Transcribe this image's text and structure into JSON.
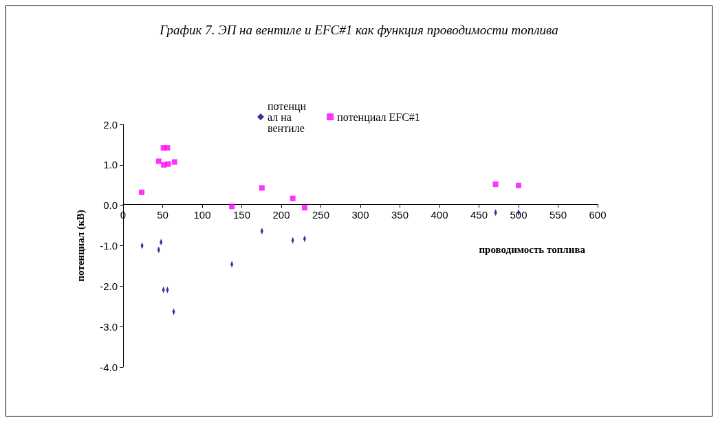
{
  "chart_data": {
    "type": "scatter",
    "title": "График 7. ЭП на вентиле и EFC#1 как функция проводимости топлива",
    "xlabel": "проводимость топлива",
    "ylabel": "потенциал (кВ)",
    "xlim": [
      0,
      600
    ],
    "xticks": [
      0,
      50,
      100,
      150,
      200,
      250,
      300,
      350,
      400,
      450,
      500,
      550,
      600
    ],
    "ylim": [
      -4,
      2
    ],
    "yticks": [
      {
        "value": -4,
        "label": "-4.0"
      },
      {
        "value": -3,
        "label": "-3.0"
      },
      {
        "value": -2,
        "label": "-2.0"
      },
      {
        "value": -1,
        "label": "-1.0"
      },
      {
        "value": 0,
        "label": "0.0"
      },
      {
        "value": 1,
        "label": "1.0"
      },
      {
        "value": 2,
        "label": "2.0"
      }
    ],
    "grid": false,
    "legend": "top",
    "series": [
      {
        "name": "потенциал на вентиле",
        "color": "#000080",
        "marker": "diamond",
        "x": [
          24,
          45,
          48,
          51,
          56,
          64,
          137.5,
          175.5,
          214.5,
          229.5,
          471,
          500
        ],
        "values": [
          -1.0,
          -1.1,
          -0.91,
          -2.09,
          -2.09,
          -2.63,
          -1.46,
          -0.64,
          -0.87,
          -0.83,
          -0.18,
          -0.18
        ]
      },
      {
        "name": "потенциал EFC#1",
        "color": "#ff00ff",
        "marker": "square",
        "x": [
          23.5,
          45,
          51.5,
          51,
          56,
          57,
          65,
          137.5,
          175.5,
          214.5,
          229.5,
          471,
          500
        ],
        "values": [
          0.32,
          1.09,
          1.0,
          1.42,
          1.42,
          1.02,
          1.07,
          -0.03,
          0.43,
          0.17,
          -0.06,
          0.52,
          0.49
        ]
      }
    ]
  }
}
